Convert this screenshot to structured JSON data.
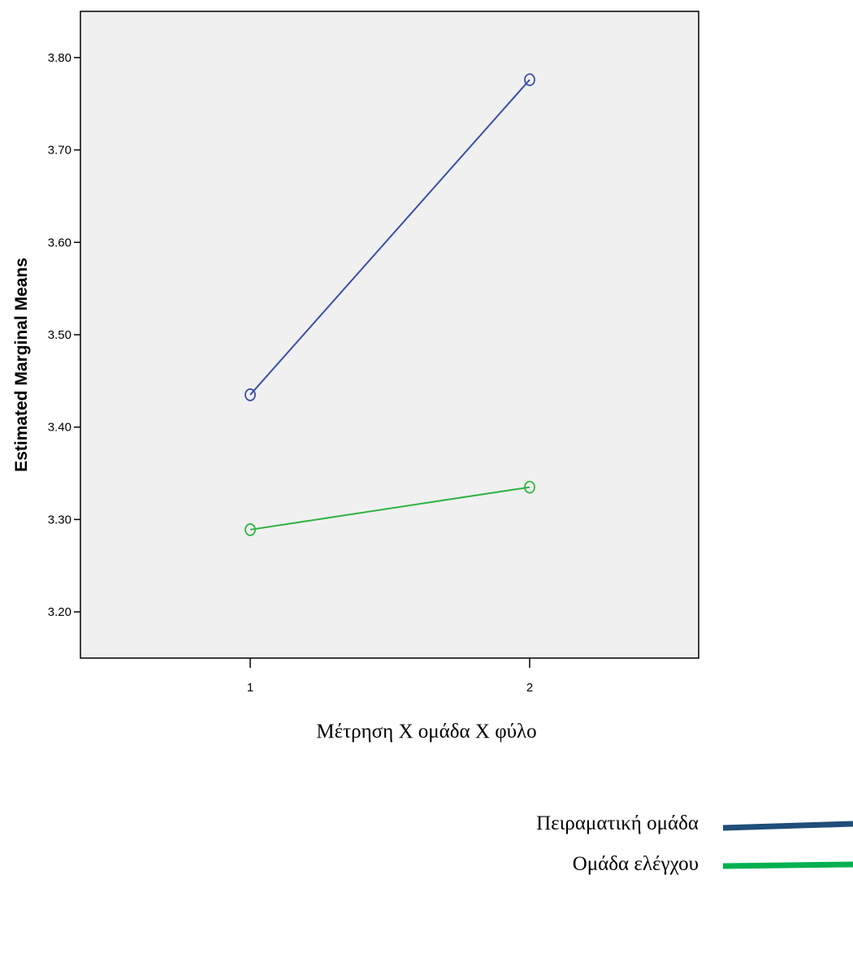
{
  "chart_data": {
    "type": "line",
    "title": "",
    "xlabel": "",
    "ylabel": "Estimated Marginal Means",
    "x": [
      "1",
      "2"
    ],
    "ylim": [
      3.15,
      3.85
    ],
    "yticks": [
      "3.20",
      "3.30",
      "3.40",
      "3.50",
      "3.60",
      "3.70",
      "3.80"
    ],
    "grid": false,
    "plot_background": "#f0f0f0",
    "series": [
      {
        "values": [
          3.435,
          3.776
        ],
        "color": "#3a4fa8",
        "marker": "circle-open"
      },
      {
        "values": [
          3.289,
          3.335
        ],
        "color": "#2fb340",
        "marker": "circle-open"
      }
    ]
  },
  "caption": "Μέτρηση Χ ομάδα Χ φύλο",
  "legend": [
    {
      "label": "Πειραματική ομάδα",
      "color": "#1f4e79"
    },
    {
      "label": "Ομάδα ελέγχου",
      "color": "#00b050"
    }
  ]
}
